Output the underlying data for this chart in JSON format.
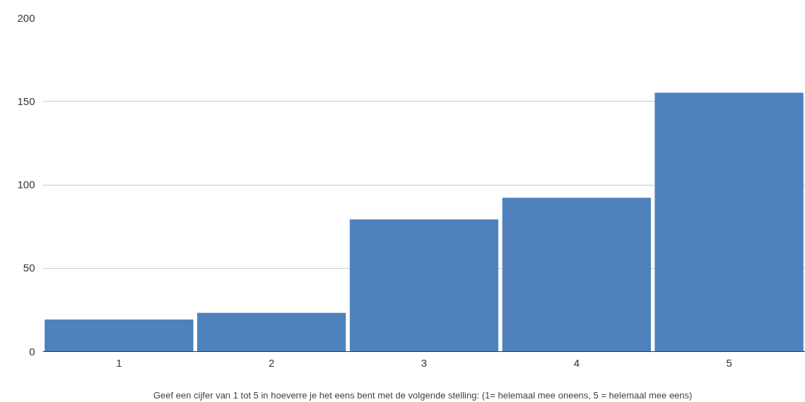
{
  "chart_data": {
    "type": "bar",
    "xlabel": "Geef een cijfer van 1 tot 5 in hoeverre je het eens bent met de volgende stelling:  (1= helemaal mee oneens, 5 = helemaal mee eens)",
    "categories": [
      "1",
      "2",
      "3",
      "4",
      "5"
    ],
    "values": [
      19,
      23,
      79,
      92,
      155
    ],
    "color": "#4f81bd",
    "ylim": [
      0,
      200
    ],
    "yticks": [
      0,
      50,
      100,
      150,
      200
    ],
    "grid": "y"
  }
}
